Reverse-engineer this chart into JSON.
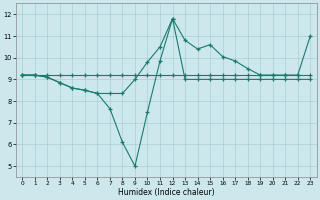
{
  "xlabel": "Humidex (Indice chaleur)",
  "bg_color": "#cce8ec",
  "grid_color": "#aacdd4",
  "line_color": "#1a7a6e",
  "xlim": [
    -0.5,
    23.5
  ],
  "ylim": [
    4.5,
    12.5
  ],
  "xticks": [
    0,
    1,
    2,
    3,
    4,
    5,
    6,
    7,
    8,
    9,
    10,
    11,
    12,
    13,
    14,
    15,
    16,
    17,
    18,
    19,
    20,
    21,
    22,
    23
  ],
  "yticks": [
    5,
    6,
    7,
    8,
    9,
    10,
    11,
    12
  ],
  "line1_x": [
    0,
    1,
    2,
    3,
    4,
    5,
    6,
    7,
    8,
    9,
    10,
    11,
    12,
    13,
    14,
    15,
    16,
    17,
    18,
    19,
    20,
    21,
    22,
    23
  ],
  "line1_y": [
    9.2,
    9.2,
    9.1,
    8.85,
    8.6,
    8.5,
    8.35,
    7.65,
    6.1,
    5.0,
    7.5,
    9.85,
    11.8,
    9.0,
    9.0,
    9.0,
    9.0,
    9.0,
    9.0,
    9.0,
    9.0,
    9.0,
    9.0,
    9.0
  ],
  "line2_x": [
    0,
    1,
    2,
    3,
    4,
    5,
    6,
    7,
    8,
    9,
    10,
    11,
    12,
    13,
    14,
    15,
    16,
    17,
    18,
    19,
    20,
    21,
    22,
    23
  ],
  "line2_y": [
    9.2,
    9.2,
    9.1,
    8.85,
    8.6,
    8.5,
    8.35,
    8.35,
    8.35,
    9.0,
    9.8,
    10.5,
    11.8,
    10.8,
    10.4,
    10.6,
    10.05,
    9.85,
    9.5,
    9.2,
    9.2,
    9.2,
    9.2,
    11.0
  ],
  "line3_x": [
    0,
    1,
    2,
    3,
    4,
    5,
    6,
    7,
    8,
    9,
    10,
    11,
    12,
    13,
    14,
    15,
    16,
    17,
    18,
    19,
    20,
    21,
    22,
    23
  ],
  "line3_y": [
    9.2,
    9.2,
    9.2,
    9.2,
    9.2,
    9.2,
    9.2,
    9.2,
    9.2,
    9.2,
    9.2,
    9.2,
    9.2,
    9.2,
    9.2,
    9.2,
    9.2,
    9.2,
    9.2,
    9.2,
    9.2,
    9.2,
    9.2,
    9.2
  ]
}
